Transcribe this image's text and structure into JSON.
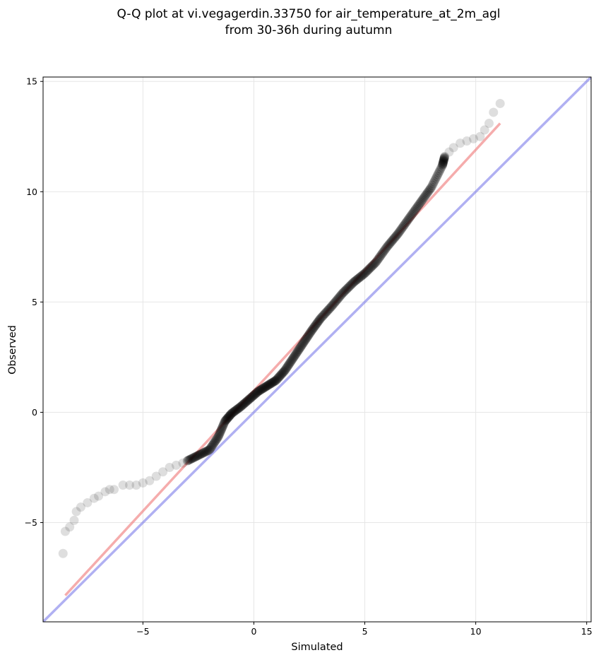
{
  "chart_data": {
    "type": "scatter",
    "title_line1": "Q-Q plot at vi.vegagerdin.33750 for air_temperature_at_2m_agl",
    "title_line2": "from 30-36h during autumn",
    "xlabel": "Simulated",
    "ylabel": "Observed",
    "xlim": [
      -9.5,
      15.2
    ],
    "ylim": [
      -9.5,
      15.2
    ],
    "xticks": [
      -5,
      0,
      5,
      10,
      15
    ],
    "yticks": [
      -5,
      0,
      5,
      10,
      15
    ],
    "xtick_labels": [
      "−5",
      "0",
      "5",
      "10",
      "15"
    ],
    "ytick_labels": [
      "−5",
      "0",
      "5",
      "10",
      "15"
    ],
    "grid": true,
    "colors": {
      "points": "#000000",
      "fit_line": "#f08080",
      "identity_line": "#7b7bea",
      "grid": "#e6e6e6"
    },
    "fit_line": {
      "name": "",
      "x": [
        -8.5,
        11.1
      ],
      "y": [
        -8.3,
        13.1
      ]
    },
    "identity_line": {
      "name": "",
      "x": [
        -9.5,
        15.2
      ],
      "y": [
        -9.5,
        15.2
      ]
    },
    "points_sparse": [
      [
        -8.6,
        -6.4
      ],
      [
        -8.5,
        -5.4
      ],
      [
        -8.3,
        -5.2
      ],
      [
        -8.1,
        -4.9
      ],
      [
        -8.0,
        -4.5
      ],
      [
        -7.8,
        -4.3
      ],
      [
        -7.5,
        -4.1
      ],
      [
        -7.2,
        -3.9
      ],
      [
        -7.0,
        -3.8
      ],
      [
        -6.7,
        -3.6
      ],
      [
        -6.5,
        -3.5
      ],
      [
        -6.3,
        -3.5
      ],
      [
        -5.9,
        -3.3
      ],
      [
        -5.6,
        -3.3
      ],
      [
        -5.3,
        -3.3
      ],
      [
        -5.0,
        -3.2
      ],
      [
        -4.7,
        -3.1
      ],
      [
        -4.4,
        -2.9
      ],
      [
        -4.1,
        -2.7
      ],
      [
        -3.8,
        -2.5
      ],
      [
        -3.5,
        -2.4
      ],
      [
        -3.2,
        -2.3
      ],
      [
        8.6,
        11.6
      ],
      [
        8.8,
        11.8
      ],
      [
        9.0,
        12.0
      ],
      [
        9.3,
        12.2
      ],
      [
        9.6,
        12.3
      ],
      [
        9.9,
        12.4
      ],
      [
        10.2,
        12.5
      ],
      [
        10.4,
        12.8
      ],
      [
        10.6,
        13.1
      ],
      [
        10.8,
        13.6
      ],
      [
        11.1,
        14.0
      ]
    ],
    "points_dense_curve": [
      [
        -3.0,
        -2.2
      ],
      [
        -2.5,
        -1.95
      ],
      [
        -2.0,
        -1.7
      ],
      [
        -1.6,
        -1.1
      ],
      [
        -1.3,
        -0.4
      ],
      [
        -1.0,
        -0.05
      ],
      [
        -0.6,
        0.25
      ],
      [
        -0.2,
        0.6
      ],
      [
        0.2,
        0.95
      ],
      [
        0.6,
        1.2
      ],
      [
        1.0,
        1.45
      ],
      [
        1.4,
        1.9
      ],
      [
        1.8,
        2.5
      ],
      [
        2.2,
        3.1
      ],
      [
        2.6,
        3.7
      ],
      [
        3.0,
        4.25
      ],
      [
        3.5,
        4.8
      ],
      [
        4.0,
        5.4
      ],
      [
        4.5,
        5.9
      ],
      [
        5.0,
        6.3
      ],
      [
        5.5,
        6.8
      ],
      [
        6.0,
        7.5
      ],
      [
        6.5,
        8.1
      ],
      [
        7.0,
        8.8
      ],
      [
        7.5,
        9.5
      ],
      [
        8.0,
        10.2
      ],
      [
        8.5,
        11.2
      ],
      [
        8.6,
        11.6
      ]
    ]
  }
}
